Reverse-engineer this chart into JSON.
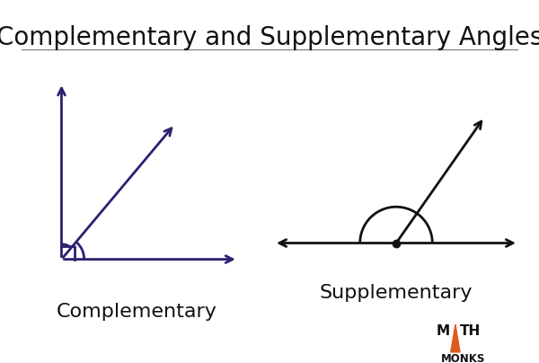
{
  "title": "Complementary and Supplementary Angles",
  "title_fontsize": 20,
  "title_color": "#111111",
  "bg_color": "#ffffff",
  "complementary_label": "Complementary",
  "supplementary_label": "Supplementary",
  "label_fontsize": 16,
  "dark_purple": "#2e2070",
  "black": "#111111",
  "orange": "#e05a1a",
  "math_monks_color": "#111111"
}
